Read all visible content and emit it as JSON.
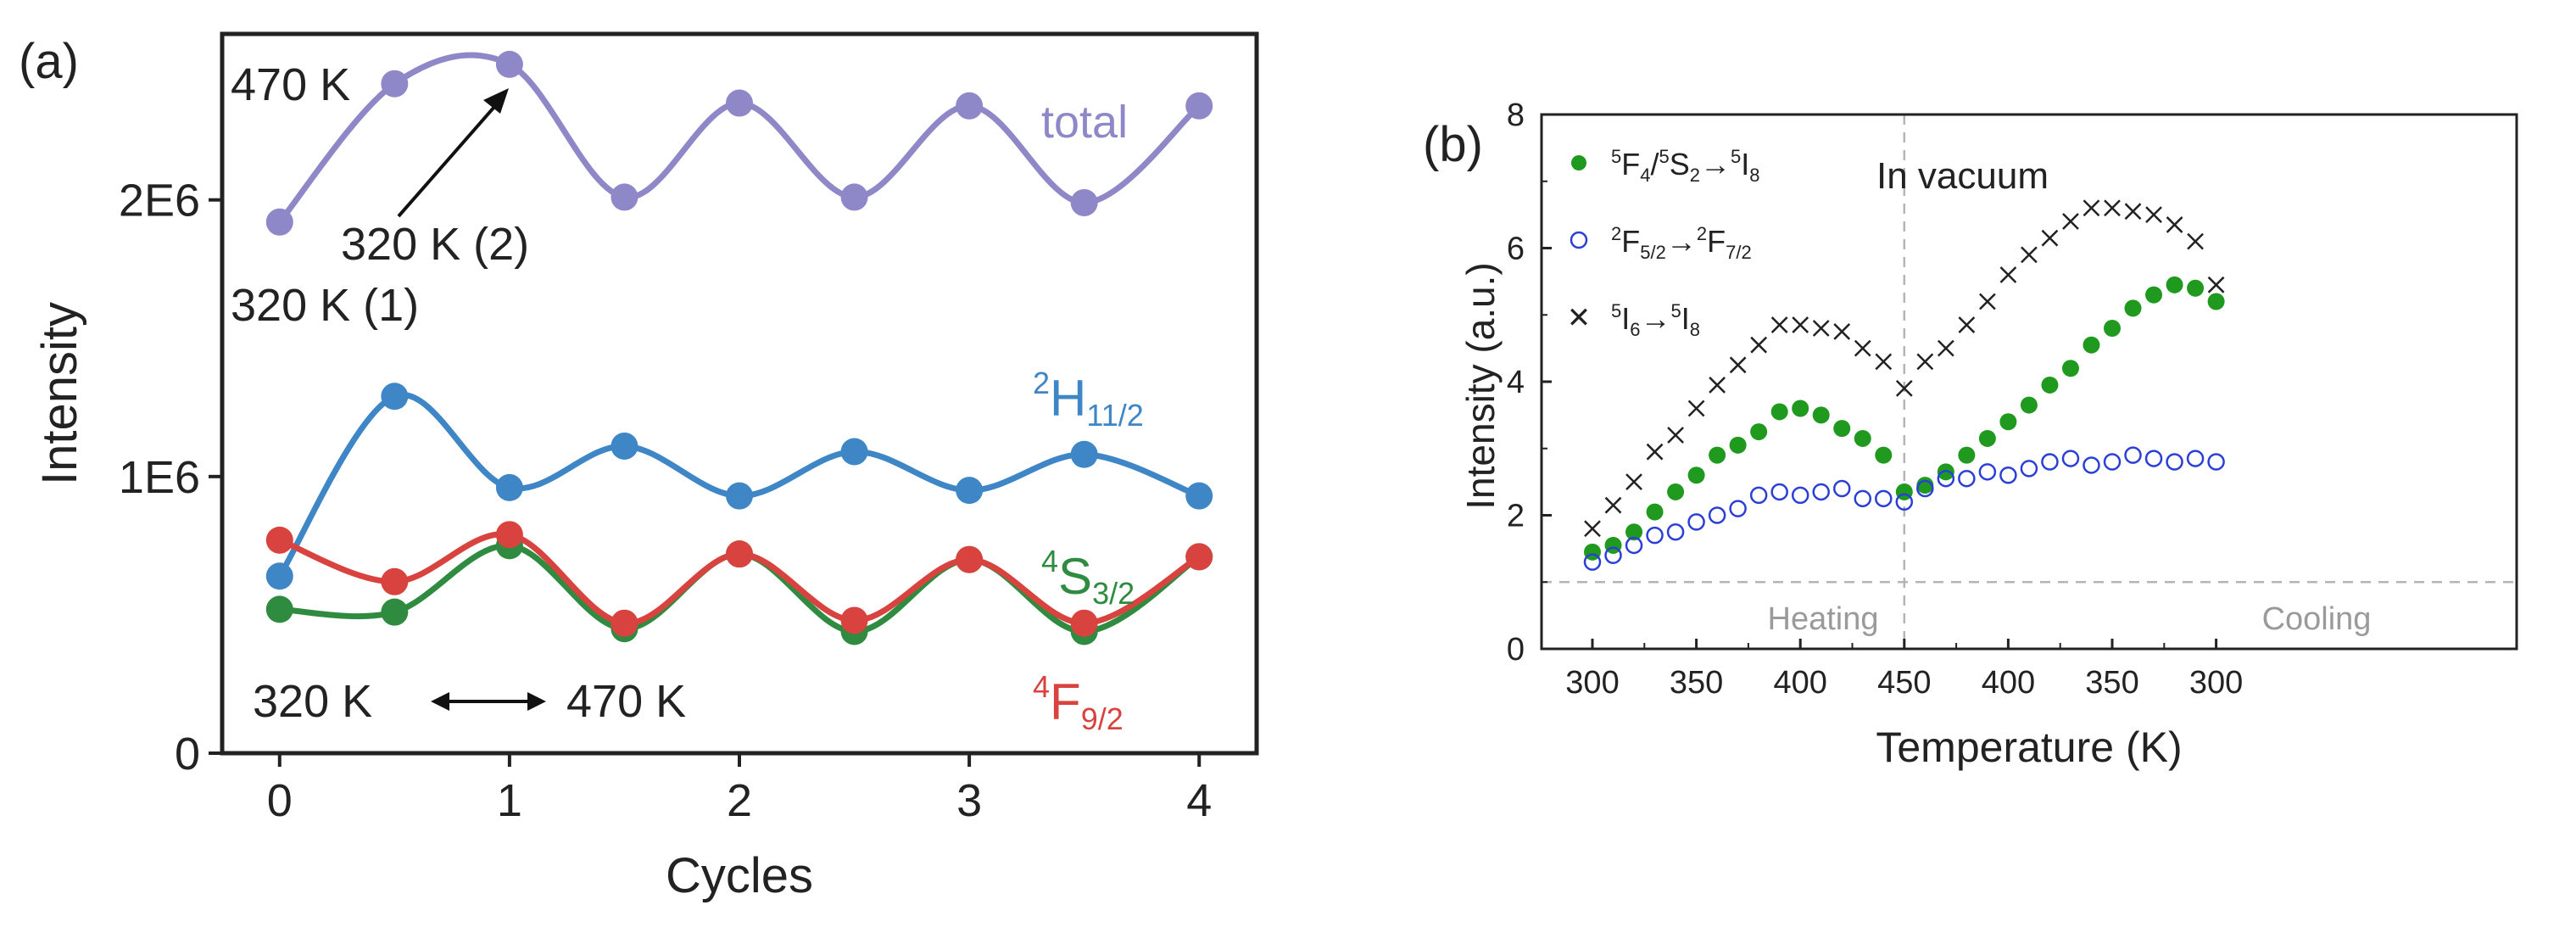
{
  "chart_data": [
    {
      "panel_label": "(a)",
      "type": "line",
      "xlabel": "Cycles",
      "ylabel": "Intensity",
      "xlim": [
        -0.25,
        4.25
      ],
      "ylim": [
        0,
        2600000
      ],
      "x_ticks": [
        0,
        1,
        2,
        3,
        4
      ],
      "x_tick_labels": [
        "0",
        "1",
        "2",
        "3",
        "4"
      ],
      "y_ticks": [
        0,
        1000000,
        2000000
      ],
      "y_tick_labels": [
        "0",
        "1E6",
        "2E6"
      ],
      "x": [
        0,
        0.5,
        1,
        1.5,
        2,
        2.5,
        3,
        3.5,
        4
      ],
      "series": [
        {
          "name": "total",
          "color": "#8e88c8",
          "values": [
            1920000,
            2420000,
            2490000,
            2010000,
            2350000,
            2010000,
            2340000,
            1990000,
            2340000
          ]
        },
        {
          "name": "²H₁₁/₂",
          "label_main": "H",
          "label_pre": "2",
          "label_sub": "11/2",
          "color": "#3f86c6",
          "values": [
            640000,
            1290000,
            960000,
            1110000,
            930000,
            1090000,
            950000,
            1080000,
            930000
          ]
        },
        {
          "name": "⁴S₃/₂",
          "label_main": "S",
          "label_pre": "4",
          "label_sub": "3/2",
          "color": "#2e8b3f",
          "values": [
            520000,
            510000,
            750000,
            450000,
            720000,
            440000,
            700000,
            440000,
            710000
          ]
        },
        {
          "name": "⁴F₉/₂",
          "label_main": "F",
          "label_pre": "4",
          "label_sub": "9/2",
          "color": "#d9433f",
          "values": [
            770000,
            620000,
            790000,
            470000,
            720000,
            480000,
            700000,
            470000,
            710000
          ]
        }
      ],
      "annotations": [
        "470 K",
        "320 K (2)",
        "320 K (1)",
        "320 K",
        "470 K"
      ]
    },
    {
      "panel_label": "(b)",
      "type": "scatter",
      "xlabel": "Temperature (K)",
      "ylabel": "Intensity (a.u.)",
      "title_annotation": "In vacuum",
      "regions": [
        "Heating",
        "Cooling"
      ],
      "ylim": [
        0,
        8
      ],
      "y_ticks": [
        0,
        2,
        4,
        6,
        8
      ],
      "x_axis_note": "heating 300→450 K then cooling 450→300 K",
      "x_tick_labels": [
        "300",
        "350",
        "400",
        "450",
        "400",
        "350",
        "300"
      ],
      "reference_line_y": 1,
      "x_sequence": [
        300,
        310,
        320,
        330,
        340,
        350,
        360,
        370,
        380,
        390,
        400,
        410,
        420,
        430,
        440,
        450,
        440,
        430,
        420,
        410,
        400,
        390,
        380,
        370,
        360,
        350,
        340,
        330,
        320,
        310,
        300
      ],
      "series": [
        {
          "name": "⁵F₄/⁵S₂→⁵I₈",
          "color": "#1f9a1f",
          "marker": "filled-circle",
          "values": [
            1.45,
            1.55,
            1.75,
            2.05,
            2.35,
            2.6,
            2.9,
            3.05,
            3.25,
            3.55,
            3.6,
            3.5,
            3.3,
            3.15,
            2.9,
            2.35,
            2.45,
            2.65,
            2.9,
            3.15,
            3.4,
            3.65,
            3.95,
            4.2,
            4.55,
            4.8,
            5.1,
            5.3,
            5.45,
            5.4,
            5.2
          ]
        },
        {
          "name": "²F₅/₂→²F₇/₂",
          "color": "#2b3fd6",
          "marker": "open-circle",
          "values": [
            1.3,
            1.4,
            1.55,
            1.7,
            1.75,
            1.9,
            2.0,
            2.1,
            2.3,
            2.35,
            2.3,
            2.35,
            2.4,
            2.25,
            2.25,
            2.2,
            2.4,
            2.55,
            2.55,
            2.65,
            2.6,
            2.7,
            2.8,
            2.85,
            2.75,
            2.8,
            2.9,
            2.85,
            2.8,
            2.85,
            2.8
          ]
        },
        {
          "name": "⁵I₆→⁵I₈",
          "color": "#222222",
          "marker": "x",
          "values": [
            1.8,
            2.15,
            2.5,
            2.95,
            3.2,
            3.6,
            3.95,
            4.25,
            4.55,
            4.85,
            4.85,
            4.8,
            4.75,
            4.5,
            4.3,
            3.9,
            4.3,
            4.5,
            4.85,
            5.2,
            5.6,
            5.9,
            6.15,
            6.4,
            6.6,
            6.6,
            6.55,
            6.5,
            6.35,
            6.1,
            5.45
          ]
        }
      ],
      "legend": [
        {
          "pre1": "5",
          "a": "F",
          "sub1": "4",
          "sep": "/",
          "pre2": "5",
          "b": "S",
          "sub2": "2",
          "arrow": "→",
          "pre3": "5",
          "c": "I",
          "sub3": "8"
        },
        {
          "pre1": "2",
          "a": "F",
          "sub1": "5/2",
          "arrow": "→",
          "pre2": "2",
          "b": "F",
          "sub2": "7/2"
        },
        {
          "pre1": "5",
          "a": "I",
          "sub1": "6",
          "arrow": "→",
          "pre2": "5",
          "b": "I",
          "sub2": "8"
        }
      ]
    }
  ]
}
